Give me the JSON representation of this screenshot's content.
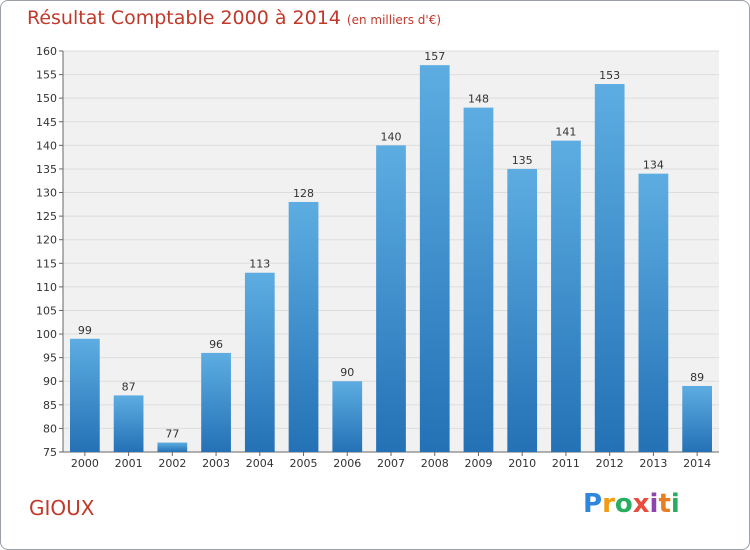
{
  "title": "Résultat Comptable 2000 à 2014",
  "subtitle": "(en milliers d'€)",
  "place": "GIOUX",
  "logo": {
    "letters": [
      "P",
      "r",
      "o",
      "x",
      "i",
      "t",
      "i"
    ],
    "colors": [
      "#2e86de",
      "#f39c12",
      "#27ae60",
      "#e74c3c",
      "#8e44ad",
      "#e67e22",
      "#27ae60"
    ]
  },
  "colors": {
    "bar_top": "#5dade2",
    "bar_bottom": "#2471b5",
    "grid": "#dddddd",
    "title": "#c0392b",
    "plot_bg": "#f1f1f1"
  },
  "chart_data": {
    "type": "bar",
    "categories": [
      "2000",
      "2001",
      "2002",
      "2003",
      "2004",
      "2005",
      "2006",
      "2007",
      "2008",
      "2009",
      "2010",
      "2011",
      "2012",
      "2013",
      "2014"
    ],
    "values": [
      99,
      87,
      77,
      96,
      113,
      128,
      90,
      140,
      157,
      148,
      135,
      141,
      153,
      134,
      89
    ],
    "ylim": [
      75,
      160
    ],
    "yticks": [
      75,
      80,
      85,
      90,
      95,
      100,
      105,
      110,
      115,
      120,
      125,
      130,
      135,
      140,
      145,
      150,
      155,
      160
    ],
    "grid": true,
    "data_labels": true
  }
}
